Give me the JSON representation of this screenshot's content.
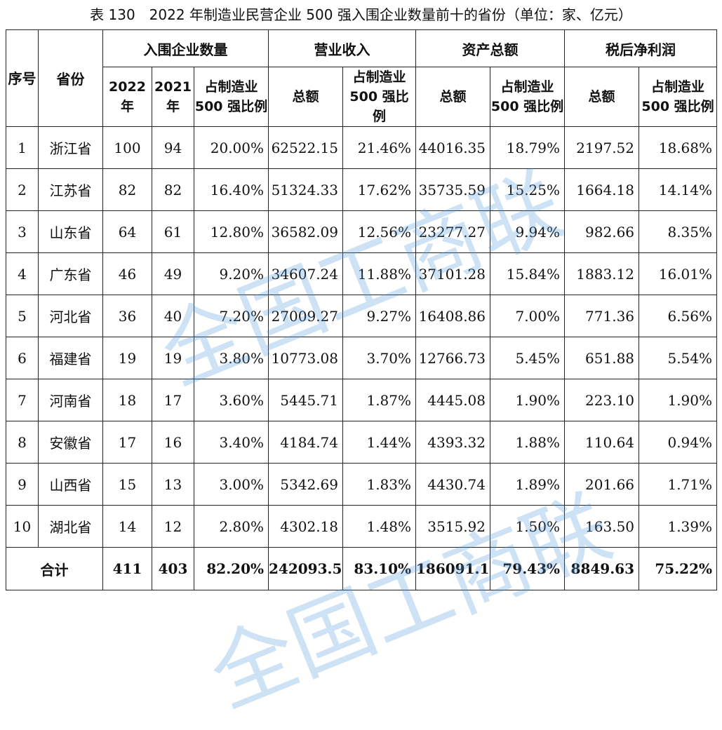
{
  "caption": "表 130　2022 年制造业民营企业 500 强入围企业数量前十的省份（单位：家、亿元）",
  "headers": {
    "seq": "序号",
    "province": "省份",
    "groups": [
      "入围企业数量",
      "营业收入",
      "资产总额",
      "税后净利润"
    ],
    "sub": [
      "2022 年",
      "2021 年",
      "占制造业 500 强比例",
      "总额",
      "占制造业 500 强比例",
      "总额",
      "占制造业 500 强比例",
      "总额",
      "占制造业 500 强比例"
    ]
  },
  "rows": [
    [
      "1",
      "浙江省",
      "100",
      "94",
      "20.00%",
      "62522.15",
      "21.46%",
      "44016.35",
      "18.79%",
      "2197.52",
      "18.68%"
    ],
    [
      "2",
      "江苏省",
      "82",
      "82",
      "16.40%",
      "51324.33",
      "17.62%",
      "35735.59",
      "15.25%",
      "1664.18",
      "14.14%"
    ],
    [
      "3",
      "山东省",
      "64",
      "61",
      "12.80%",
      "36582.09",
      "12.56%",
      "23277.27",
      "9.94%",
      "982.66",
      "8.35%"
    ],
    [
      "4",
      "广东省",
      "46",
      "49",
      "9.20%",
      "34607.24",
      "11.88%",
      "37101.28",
      "15.84%",
      "1883.12",
      "16.01%"
    ],
    [
      "5",
      "河北省",
      "36",
      "40",
      "7.20%",
      "27009.27",
      "9.27%",
      "16408.86",
      "7.00%",
      "771.36",
      "6.56%"
    ],
    [
      "6",
      "福建省",
      "19",
      "19",
      "3.80%",
      "10773.08",
      "3.70%",
      "12766.73",
      "5.45%",
      "651.88",
      "5.54%"
    ],
    [
      "7",
      "河南省",
      "18",
      "17",
      "3.60%",
      "5445.71",
      "1.87%",
      "4445.08",
      "1.90%",
      "223.10",
      "1.90%"
    ],
    [
      "8",
      "安徽省",
      "17",
      "16",
      "3.40%",
      "4184.74",
      "1.44%",
      "4393.32",
      "1.88%",
      "110.64",
      "0.94%"
    ],
    [
      "9",
      "山西省",
      "15",
      "13",
      "3.00%",
      "5342.69",
      "1.83%",
      "4430.74",
      "1.89%",
      "201.66",
      "1.71%"
    ],
    [
      "10",
      "湖北省",
      "14",
      "12",
      "2.80%",
      "4302.18",
      "1.48%",
      "3515.92",
      "1.50%",
      "163.50",
      "1.39%"
    ]
  ],
  "total": [
    "合计",
    "411",
    "403",
    "82.20%",
    "242093.50",
    "83.10%",
    "186091.13",
    "79.43%",
    "8849.63",
    "75.22%"
  ],
  "watermark": "全国工商联"
}
